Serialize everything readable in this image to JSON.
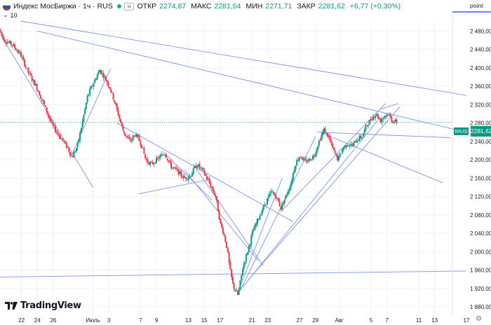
{
  "header": {
    "symbol_title": "Индекс МосБиржи · 1ч · RUS",
    "ohlc": [
      {
        "label": "ОТКР",
        "value": "2274,87"
      },
      {
        "label": "МАКС",
        "value": "2281,64"
      },
      {
        "label": "МИН",
        "value": "2271,71"
      },
      {
        "label": "ЗАКР",
        "value": "2281,62"
      }
    ],
    "change": "+6,77 (+0,30%)",
    "indicator_count": "10",
    "badge": "≋"
  },
  "axis": {
    "unit_label": "point",
    "settings_icon": "gear-icon"
  },
  "price_tag": {
    "symbol": "IRUS",
    "value": "2281,62"
  },
  "watermark": {
    "text": "TradingView",
    "icon": "tradingview-logo-icon"
  },
  "colors": {
    "up": "#089981",
    "down": "#f23645",
    "trendline": "#7b93e8",
    "grid": "#f0f3fa"
  },
  "chart_data": {
    "type": "candlestick",
    "timeframe": "1h",
    "y_ticks": [
      1880,
      1920,
      1960,
      2000,
      2040,
      2080,
      2120,
      2160,
      2200,
      2240,
      2280,
      2320,
      2360,
      2400,
      2440,
      2480
    ],
    "y_tick_labels": [
      "1 880,00",
      "1 920,00",
      "1 960,00",
      "2 000,00",
      "2 040,00",
      "2 080,00",
      "2 120,00",
      "2 160,00",
      "2 200,00",
      "2 240,00",
      "2 280,00",
      "2 320,00",
      "2 360,00",
      "2 400,00",
      "2 440,00",
      "2 480,00"
    ],
    "ylim": [
      1865,
      2520
    ],
    "x_ticks": [
      {
        "label": "22",
        "day": 22
      },
      {
        "label": "24",
        "day": 24
      },
      {
        "label": "26",
        "day": 26
      },
      {
        "label": "Июль",
        "day": 31
      },
      {
        "label": "3",
        "day": 33
      },
      {
        "label": "7",
        "day": 37
      },
      {
        "label": "9",
        "day": 39
      },
      {
        "label": "13",
        "day": 43
      },
      {
        "label": "15",
        "day": 45
      },
      {
        "label": "17",
        "day": 47
      },
      {
        "label": "21",
        "day": 51
      },
      {
        "label": "23",
        "day": 53
      },
      {
        "label": "27",
        "day": 57
      },
      {
        "label": "29",
        "day": 59
      },
      {
        "label": "Авг",
        "day": 62
      },
      {
        "label": "5",
        "day": 66
      },
      {
        "label": "7",
        "day": 68
      },
      {
        "label": "11",
        "day": 72
      },
      {
        "label": "13",
        "day": 74
      },
      {
        "label": "17",
        "day": 78
      }
    ],
    "path_points": [
      [
        19.3,
        2485
      ],
      [
        20.0,
        2460
      ],
      [
        21.0,
        2450
      ],
      [
        22.0,
        2430
      ],
      [
        23.0,
        2390
      ],
      [
        24.0,
        2360
      ],
      [
        25.0,
        2320
      ],
      [
        26.0,
        2275
      ],
      [
        27.0,
        2250
      ],
      [
        28.0,
        2225
      ],
      [
        28.5,
        2205
      ],
      [
        29.2,
        2230
      ],
      [
        29.8,
        2280
      ],
      [
        30.5,
        2340
      ],
      [
        31.3,
        2370
      ],
      [
        32.0,
        2395
      ],
      [
        32.6,
        2380
      ],
      [
        33.2,
        2360
      ],
      [
        33.8,
        2330
      ],
      [
        34.4,
        2295
      ],
      [
        35.0,
        2260
      ],
      [
        35.8,
        2240
      ],
      [
        36.5,
        2255
      ],
      [
        37.2,
        2235
      ],
      [
        37.8,
        2200
      ],
      [
        38.5,
        2190
      ],
      [
        39.5,
        2205
      ],
      [
        40.2,
        2215
      ],
      [
        41.0,
        2185
      ],
      [
        41.8,
        2175
      ],
      [
        42.6,
        2160
      ],
      [
        43.4,
        2165
      ],
      [
        44.2,
        2190
      ],
      [
        45.0,
        2175
      ],
      [
        45.8,
        2150
      ],
      [
        46.6,
        2120
      ],
      [
        47.2,
        2060
      ],
      [
        47.6,
        2040
      ],
      [
        48.0,
        2010
      ],
      [
        48.4,
        1960
      ],
      [
        48.8,
        1925
      ],
      [
        49.4,
        1905
      ],
      [
        50.0,
        1965
      ],
      [
        50.6,
        2000
      ],
      [
        51.2,
        2040
      ],
      [
        51.8,
        2065
      ],
      [
        52.4,
        2090
      ],
      [
        53.0,
        2110
      ],
      [
        53.6,
        2130
      ],
      [
        54.2,
        2120
      ],
      [
        54.8,
        2095
      ],
      [
        55.4,
        2120
      ],
      [
        56.0,
        2145
      ],
      [
        56.6,
        2190
      ],
      [
        57.2,
        2210
      ],
      [
        57.8,
        2195
      ],
      [
        58.4,
        2200
      ],
      [
        59.0,
        2210
      ],
      [
        59.6,
        2240
      ],
      [
        60.2,
        2265
      ],
      [
        60.8,
        2250
      ],
      [
        61.4,
        2220
      ],
      [
        62.0,
        2200
      ],
      [
        62.6,
        2225
      ],
      [
        63.2,
        2235
      ],
      [
        63.8,
        2230
      ],
      [
        64.4,
        2245
      ],
      [
        65.0,
        2250
      ],
      [
        65.6,
        2275
      ],
      [
        66.2,
        2290
      ],
      [
        66.8,
        2300
      ],
      [
        67.3,
        2285
      ],
      [
        67.8,
        2295
      ],
      [
        68.3,
        2300
      ],
      [
        68.8,
        2285
      ],
      [
        69.3,
        2282
      ]
    ],
    "trendlines": [
      {
        "x1": 19.0,
        "y1": 2510,
        "x2": 78.0,
        "y2": 2340
      },
      {
        "x1": 24.0,
        "y1": 2480,
        "x2": 78.0,
        "y2": 2260
      },
      {
        "x1": 19.6,
        "y1": 2465,
        "x2": 31.0,
        "y2": 2140
      },
      {
        "x1": 28.4,
        "y1": 2214,
        "x2": 33.2,
        "y2": 2398
      },
      {
        "x1": 34.0,
        "y1": 2280,
        "x2": 56.2,
        "y2": 2065
      },
      {
        "x1": 36.8,
        "y1": 2126,
        "x2": 45.6,
        "y2": 2157
      },
      {
        "x1": 39.8,
        "y1": 2218,
        "x2": 46.0,
        "y2": 2112
      },
      {
        "x1": 42.5,
        "y1": 2178,
        "x2": 51.8,
        "y2": 1980
      },
      {
        "x1": 43.6,
        "y1": 2190,
        "x2": 52.4,
        "y2": 1970
      },
      {
        "x1": 49.2,
        "y1": 1910,
        "x2": 54.8,
        "y2": 2160
      },
      {
        "x1": 49.6,
        "y1": 1918,
        "x2": 59.0,
        "y2": 2250
      },
      {
        "x1": 49.8,
        "y1": 1922,
        "x2": 66.8,
        "y2": 2285
      },
      {
        "x1": 50.6,
        "y1": 1940,
        "x2": 69.6,
        "y2": 2315
      },
      {
        "x1": 54.8,
        "y1": 2090,
        "x2": 67.8,
        "y2": 2322
      },
      {
        "x1": 59.2,
        "y1": 2260,
        "x2": 76.0,
        "y2": 2248
      },
      {
        "x1": 59.8,
        "y1": 2258,
        "x2": 75.0,
        "y2": 2150
      },
      {
        "x1": 67.2,
        "y1": 2310,
        "x2": 69.4,
        "y2": 2322
      },
      {
        "x1": 19.0,
        "y1": 1945,
        "x2": 78.0,
        "y2": 1958
      }
    ],
    "last_price": 2281.62
  }
}
